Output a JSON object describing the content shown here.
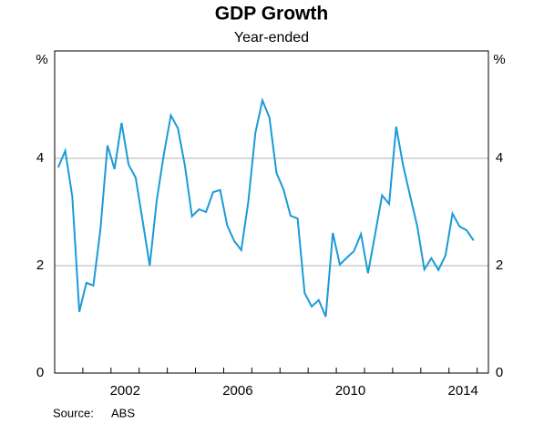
{
  "chart_data": {
    "type": "line",
    "title": "GDP Growth",
    "subtitle": "Year-ended",
    "y_unit": "%",
    "y2_unit": "%",
    "source_label": "Source:",
    "source": "ABS",
    "x": [
      2000.125,
      2000.375,
      2000.625,
      2000.875,
      2001.125,
      2001.375,
      2001.625,
      2001.875,
      2002.125,
      2002.375,
      2002.625,
      2002.875,
      2003.125,
      2003.375,
      2003.625,
      2003.875,
      2004.125,
      2004.375,
      2004.625,
      2004.875,
      2005.125,
      2005.375,
      2005.625,
      2005.875,
      2006.125,
      2006.375,
      2006.625,
      2006.875,
      2007.125,
      2007.375,
      2007.625,
      2007.875,
      2008.125,
      2008.375,
      2008.625,
      2008.875,
      2009.125,
      2009.375,
      2009.625,
      2009.875,
      2010.125,
      2010.375,
      2010.625,
      2010.875,
      2011.125,
      2011.375,
      2011.625,
      2011.875,
      2012.125,
      2012.375,
      2012.625,
      2012.875,
      2013.125,
      2013.375,
      2013.625,
      2013.875,
      2014.125,
      2014.375,
      2014.625,
      2014.875
    ],
    "series": [
      {
        "name": "GDP growth",
        "color": "#1a9bd7",
        "values": [
          3.83,
          4.14,
          3.29,
          1.14,
          1.68,
          1.63,
          2.68,
          4.24,
          3.8,
          4.66,
          3.88,
          3.64,
          2.83,
          2.0,
          3.22,
          4.07,
          4.8,
          4.56,
          3.86,
          2.92,
          3.05,
          3.0,
          3.37,
          3.41,
          2.75,
          2.46,
          2.29,
          3.19,
          4.47,
          5.08,
          4.76,
          3.73,
          3.42,
          2.93,
          2.88,
          1.49,
          1.24,
          1.36,
          1.05,
          2.61,
          2.02,
          2.15,
          2.27,
          2.59,
          1.86,
          2.58,
          3.31,
          3.15,
          4.59,
          3.86,
          3.29,
          2.73,
          1.93,
          2.14,
          1.92,
          2.19,
          2.97,
          2.73,
          2.66,
          2.47
        ]
      }
    ],
    "xlim": [
      2000,
      2015.4
    ],
    "xticks": [
      2002,
      2006,
      2010,
      2014
    ],
    "ylim": [
      0,
      6
    ],
    "yticks": [
      0,
      2,
      4
    ],
    "y2lim": [
      0,
      6
    ],
    "y2ticks": [
      0,
      2,
      4
    ],
    "grid": true
  }
}
